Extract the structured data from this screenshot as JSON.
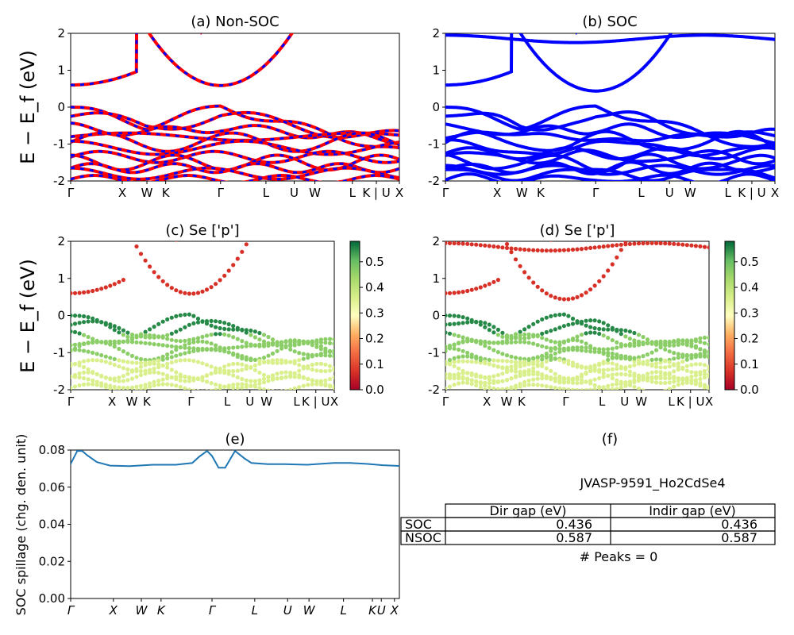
{
  "chart_data": [
    {
      "id": "a",
      "type": "line",
      "title": "(a) Non-SOC",
      "ylabel": "E − E_f (eV)",
      "ylim": [
        -2,
        2
      ],
      "yticks": [
        "-2",
        "-1",
        "0",
        "1",
        "2"
      ],
      "kticks": [
        "Γ",
        "X",
        "W",
        "K",
        "Γ",
        "L",
        "U",
        "W",
        "L",
        "K | U",
        "X"
      ],
      "colors": [
        "#ff0000",
        "#0000ff"
      ],
      "valence_maxima_eV": [
        0.0,
        -0.22,
        -0.55,
        -0.75,
        -0.82,
        -1.05
      ],
      "conduction_minimum_eV": 0.587
    },
    {
      "id": "b",
      "type": "line",
      "title": "(b) SOC",
      "ylim": [
        -2,
        2
      ],
      "yticks": [
        "-2",
        "-1",
        "0",
        "1",
        "2"
      ],
      "kticks": [
        "Γ",
        "X",
        "W",
        "K",
        "Γ",
        "L",
        "U",
        "W",
        "L",
        "K | U",
        "X"
      ],
      "colors": [
        "#0000ff"
      ],
      "conduction_minimum_eV": 0.436
    },
    {
      "id": "c",
      "type": "scatter",
      "title": "(c)  Se ['p']",
      "ylabel": "E − E_f (eV)",
      "ylim": [
        -2,
        2
      ],
      "yticks": [
        "-2",
        "-1",
        "0",
        "1",
        "2"
      ],
      "kticks": [
        "Γ",
        "X",
        "W",
        "K",
        "Γ",
        "L",
        "U",
        "W",
        "L",
        "K | U",
        "X"
      ],
      "colorbar": {
        "min": 0.0,
        "max": 0.58,
        "ticks": [
          "0.0",
          "0.1",
          "0.2",
          "0.3",
          "0.4",
          "0.5"
        ],
        "colormap": "RdYlGn"
      }
    },
    {
      "id": "d",
      "type": "scatter",
      "title": "(d) Se ['p']",
      "ylim": [
        -2,
        2
      ],
      "yticks": [
        "-2",
        "-1",
        "0",
        "1",
        "2"
      ],
      "kticks": [
        "Γ",
        "X",
        "W",
        "K",
        "Γ",
        "L",
        "U",
        "W",
        "L",
        "K | U",
        "X"
      ],
      "colorbar": {
        "min": 0.0,
        "max": 0.58,
        "ticks": [
          "0.0",
          "0.1",
          "0.2",
          "0.3",
          "0.4",
          "0.5"
        ],
        "colormap": "RdYlGn"
      }
    },
    {
      "id": "e",
      "type": "line",
      "title": "(e)",
      "ylabel": "SOC spillage (chg. den. unit)",
      "ylim": [
        0,
        0.086
      ],
      "yticks": [
        "0.00",
        "0.02",
        "0.04",
        "0.06",
        "0.08"
      ],
      "kticks": [
        "Γ",
        "X",
        "W",
        "K",
        "Γ",
        "L",
        "U",
        "W",
        "L",
        "K",
        "U",
        "X"
      ],
      "series": [
        {
          "x": [
            0.0,
            0.02,
            0.035,
            0.05,
            0.08,
            0.12,
            0.18,
            0.25,
            0.32,
            0.37,
            0.39,
            0.415,
            0.43,
            0.45,
            0.47,
            0.5,
            0.53,
            0.55,
            0.6,
            0.65,
            0.72,
            0.8,
            0.85,
            0.9,
            0.95,
            1.0
          ],
          "y": [
            0.078,
            0.0855,
            0.0855,
            0.083,
            0.079,
            0.077,
            0.0767,
            0.0775,
            0.0775,
            0.0785,
            0.082,
            0.0855,
            0.0826,
            0.0758,
            0.0758,
            0.0855,
            0.081,
            0.0785,
            0.0778,
            0.0778,
            0.0775,
            0.0785,
            0.0785,
            0.078,
            0.0772,
            0.0768
          ],
          "color": "#1f77b4"
        }
      ]
    }
  ],
  "panel_f": {
    "title": "(f)",
    "material": "JVASP-9591_Ho2CdSe4",
    "columns": [
      "Dir gap (eV)",
      "Indir gap (eV)"
    ],
    "rows": [
      {
        "label": "SOC",
        "dir": "0.436",
        "indir": "0.436"
      },
      {
        "label": "NSOC",
        "dir": "0.587",
        "indir": "0.587"
      }
    ],
    "peaks": "# Peaks = 0"
  }
}
